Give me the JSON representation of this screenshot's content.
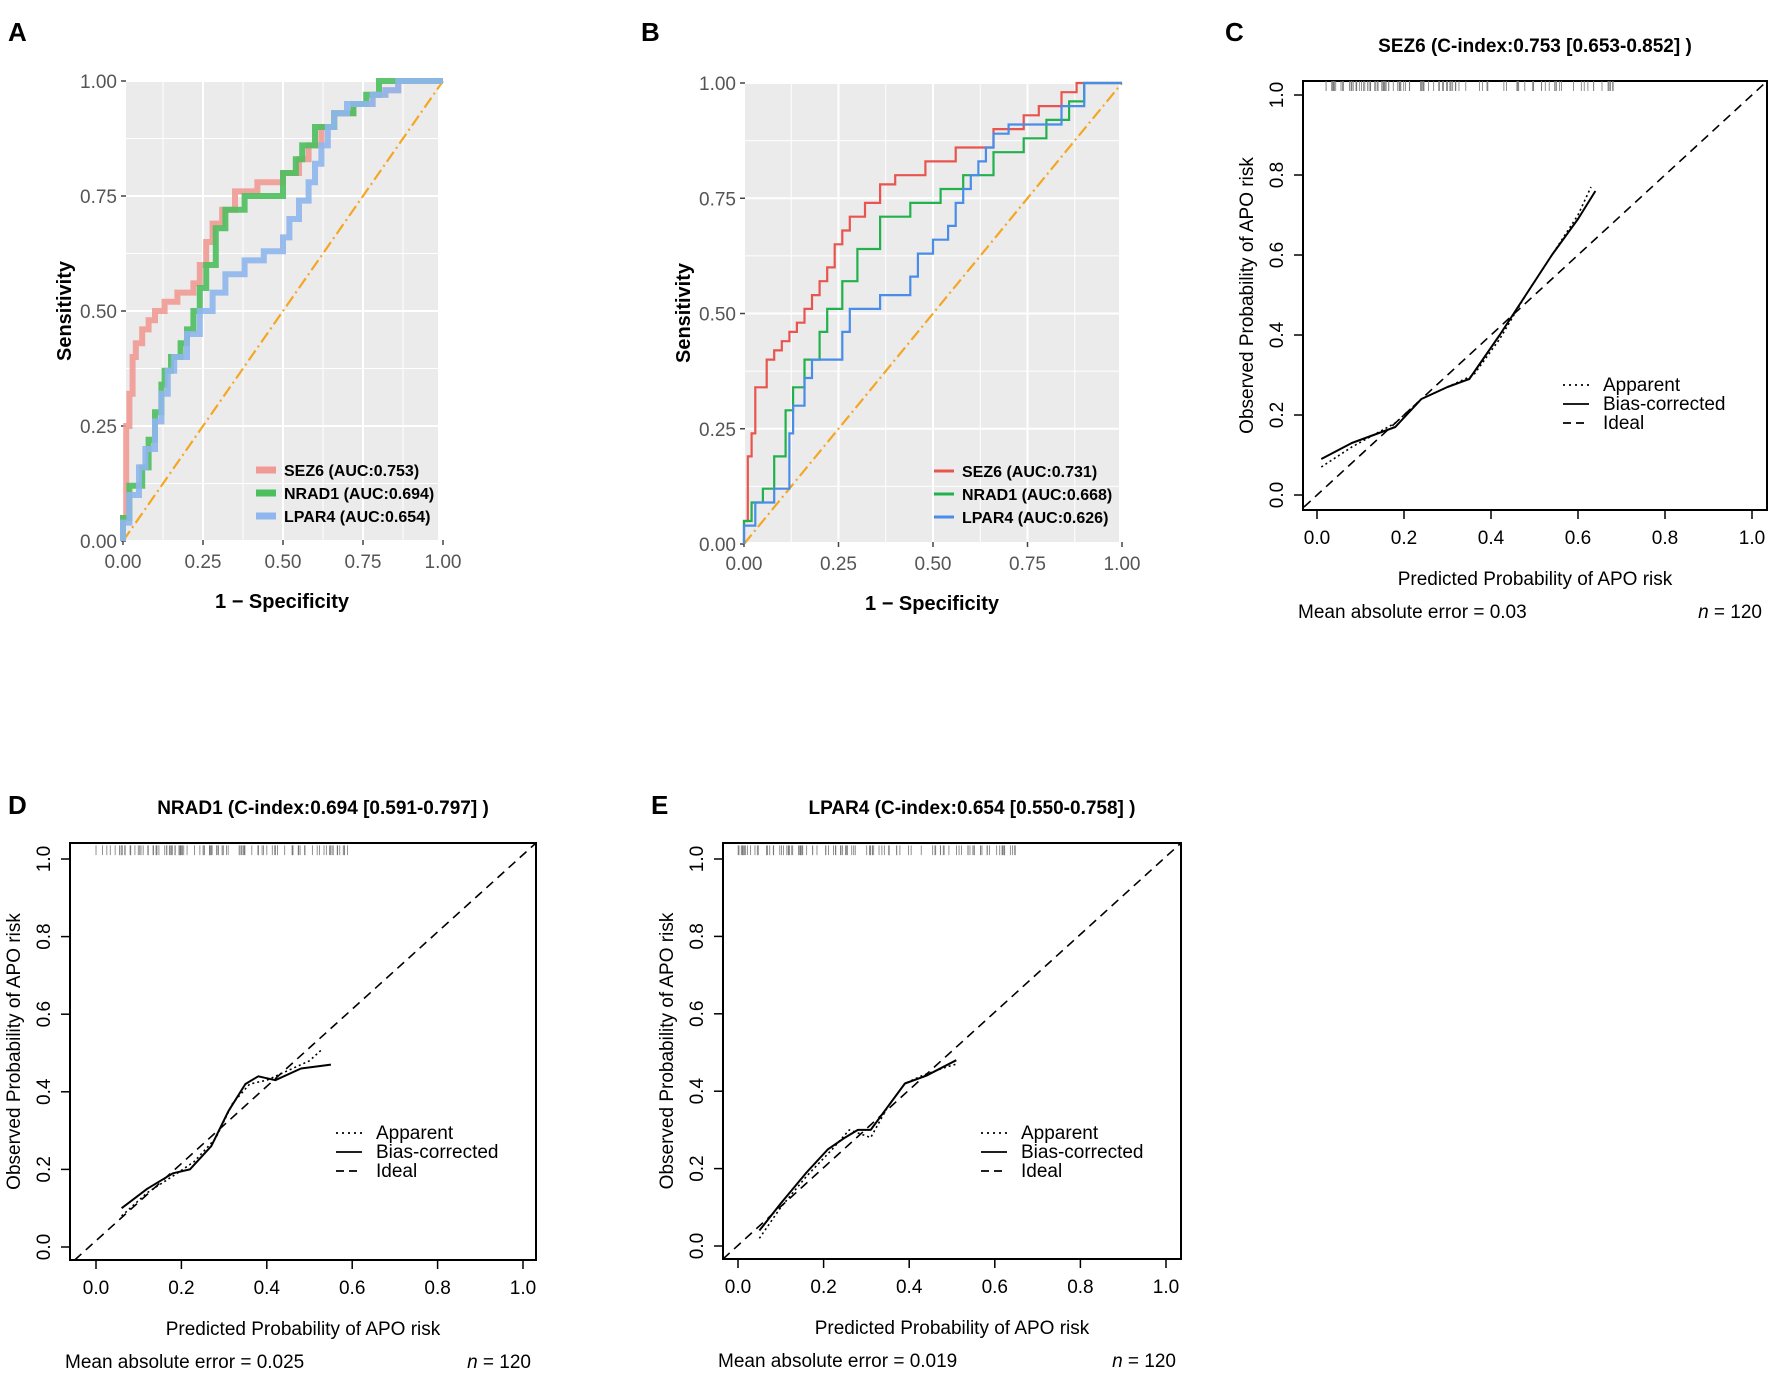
{
  "chart_data": [
    {
      "panel": "A",
      "type": "line",
      "subtype": "roc",
      "xlabel": "1 − Specificity",
      "ylabel": "Sensitivity",
      "xlim": [
        0,
        1
      ],
      "ylim": [
        0,
        1
      ],
      "x_ticks": [
        "0.00",
        "0.25",
        "0.50",
        "0.75",
        "1.00"
      ],
      "y_ticks": [
        "0.00",
        "0.25",
        "0.50",
        "0.75",
        "1.00"
      ],
      "grid": true,
      "legend_position": "bottom-right",
      "reference_line": {
        "color": "#f5a623",
        "style": "dashdot"
      },
      "series": [
        {
          "name": "SEZ6 (AUC:0.753)",
          "color": "#f19a94",
          "x": [
            0,
            0,
            0.01,
            0.01,
            0.02,
            0.02,
            0.03,
            0.03,
            0.04,
            0.04,
            0.06,
            0.06,
            0.08,
            0.08,
            0.1,
            0.1,
            0.13,
            0.13,
            0.17,
            0.17,
            0.22,
            0.22,
            0.24,
            0.24,
            0.26,
            0.26,
            0.28,
            0.28,
            0.31,
            0.31,
            0.35,
            0.35,
            0.42,
            0.42,
            0.5,
            0.5,
            0.55,
            0.55,
            0.58,
            0.58,
            0.62,
            0.62,
            0.66,
            0.66,
            0.72,
            0.72,
            0.78,
            0.78,
            0.82,
            0.82,
            0.86,
            0.86,
            0.9,
            0.9,
            1
          ],
          "y": [
            0,
            0.05,
            0.05,
            0.25,
            0.25,
            0.32,
            0.32,
            0.4,
            0.4,
            0.43,
            0.43,
            0.46,
            0.46,
            0.48,
            0.48,
            0.5,
            0.5,
            0.52,
            0.52,
            0.54,
            0.54,
            0.56,
            0.56,
            0.6,
            0.6,
            0.65,
            0.65,
            0.69,
            0.69,
            0.72,
            0.72,
            0.76,
            0.76,
            0.78,
            0.78,
            0.8,
            0.8,
            0.83,
            0.83,
            0.86,
            0.86,
            0.9,
            0.9,
            0.93,
            0.93,
            0.95,
            0.95,
            0.97,
            0.97,
            0.98,
            0.98,
            1,
            1,
            1,
            1
          ]
        },
        {
          "name": "NRAD1 (AUC:0.694)",
          "color": "#4dbf5e",
          "x": [
            0,
            0,
            0.02,
            0.02,
            0.06,
            0.06,
            0.08,
            0.08,
            0.1,
            0.1,
            0.12,
            0.12,
            0.13,
            0.13,
            0.15,
            0.15,
            0.18,
            0.18,
            0.2,
            0.2,
            0.22,
            0.22,
            0.24,
            0.24,
            0.26,
            0.26,
            0.29,
            0.29,
            0.32,
            0.32,
            0.38,
            0.38,
            0.5,
            0.5,
            0.54,
            0.54,
            0.56,
            0.56,
            0.6,
            0.6,
            0.66,
            0.66,
            0.72,
            0.72,
            0.76,
            0.76,
            0.8,
            0.8,
            0.84,
            0.84,
            1
          ],
          "y": [
            0,
            0.05,
            0.05,
            0.12,
            0.12,
            0.16,
            0.16,
            0.22,
            0.22,
            0.28,
            0.28,
            0.34,
            0.34,
            0.37,
            0.37,
            0.4,
            0.4,
            0.43,
            0.43,
            0.46,
            0.46,
            0.5,
            0.5,
            0.55,
            0.55,
            0.6,
            0.6,
            0.68,
            0.68,
            0.72,
            0.72,
            0.75,
            0.75,
            0.8,
            0.8,
            0.83,
            0.83,
            0.86,
            0.86,
            0.9,
            0.9,
            0.93,
            0.93,
            0.95,
            0.95,
            0.97,
            0.97,
            1,
            1,
            1,
            1
          ]
        },
        {
          "name": "LPAR4 (AUC:0.654)",
          "color": "#8fb6ee",
          "x": [
            0,
            0,
            0.02,
            0.02,
            0.05,
            0.05,
            0.07,
            0.07,
            0.1,
            0.1,
            0.12,
            0.12,
            0.14,
            0.14,
            0.16,
            0.16,
            0.2,
            0.2,
            0.24,
            0.24,
            0.28,
            0.28,
            0.32,
            0.32,
            0.38,
            0.38,
            0.44,
            0.44,
            0.5,
            0.5,
            0.52,
            0.52,
            0.55,
            0.55,
            0.58,
            0.58,
            0.6,
            0.6,
            0.62,
            0.62,
            0.64,
            0.64,
            0.66,
            0.66,
            0.7,
            0.7,
            0.78,
            0.78,
            0.82,
            0.82,
            0.86,
            0.86,
            1
          ],
          "y": [
            0,
            0.04,
            0.04,
            0.1,
            0.1,
            0.16,
            0.16,
            0.2,
            0.2,
            0.26,
            0.26,
            0.32,
            0.32,
            0.37,
            0.37,
            0.4,
            0.4,
            0.45,
            0.45,
            0.5,
            0.5,
            0.54,
            0.54,
            0.58,
            0.58,
            0.61,
            0.61,
            0.63,
            0.63,
            0.66,
            0.66,
            0.7,
            0.7,
            0.74,
            0.74,
            0.78,
            0.78,
            0.82,
            0.82,
            0.86,
            0.86,
            0.9,
            0.9,
            0.93,
            0.93,
            0.95,
            0.95,
            0.97,
            0.97,
            0.98,
            0.98,
            1,
            1
          ]
        }
      ]
    },
    {
      "panel": "B",
      "type": "line",
      "subtype": "roc",
      "xlabel": "1 − Specificity",
      "ylabel": "Sensitivity",
      "xlim": [
        0,
        1
      ],
      "ylim": [
        0,
        1
      ],
      "x_ticks": [
        "0.00",
        "0.25",
        "0.50",
        "0.75",
        "1.00"
      ],
      "y_ticks": [
        "0.00",
        "0.25",
        "0.50",
        "0.75",
        "1.00"
      ],
      "grid": true,
      "legend_position": "bottom-right",
      "reference_line": {
        "color": "#f5a623",
        "style": "dashdot"
      },
      "series": [
        {
          "name": "SEZ6 (AUC:0.731)",
          "color": "#e8554e",
          "x": [
            0,
            0,
            0.01,
            0.01,
            0.02,
            0.02,
            0.03,
            0.03,
            0.04,
            0.04,
            0.06,
            0.06,
            0.08,
            0.08,
            0.1,
            0.1,
            0.12,
            0.12,
            0.14,
            0.14,
            0.16,
            0.16,
            0.18,
            0.18,
            0.2,
            0.2,
            0.22,
            0.22,
            0.24,
            0.24,
            0.26,
            0.26,
            0.28,
            0.28,
            0.32,
            0.32,
            0.36,
            0.36,
            0.4,
            0.4,
            0.48,
            0.48,
            0.56,
            0.56,
            0.66,
            0.66,
            0.74,
            0.74,
            0.78,
            0.78,
            0.84,
            0.84,
            0.88,
            0.88,
            1
          ],
          "y": [
            0,
            0.05,
            0.05,
            0.19,
            0.19,
            0.24,
            0.24,
            0.34,
            0.34,
            0.34,
            0.34,
            0.4,
            0.4,
            0.42,
            0.42,
            0.44,
            0.44,
            0.46,
            0.46,
            0.48,
            0.48,
            0.51,
            0.51,
            0.54,
            0.54,
            0.57,
            0.57,
            0.6,
            0.6,
            0.65,
            0.65,
            0.68,
            0.68,
            0.71,
            0.71,
            0.74,
            0.74,
            0.78,
            0.78,
            0.8,
            0.8,
            0.83,
            0.83,
            0.86,
            0.86,
            0.9,
            0.9,
            0.93,
            0.93,
            0.95,
            0.95,
            0.98,
            0.98,
            1,
            1
          ]
        },
        {
          "name": "NRAD1 (AUC:0.668)",
          "color": "#22b14c",
          "x": [
            0,
            0,
            0.02,
            0.02,
            0.05,
            0.05,
            0.08,
            0.08,
            0.11,
            0.11,
            0.13,
            0.13,
            0.16,
            0.16,
            0.2,
            0.2,
            0.22,
            0.22,
            0.26,
            0.26,
            0.3,
            0.3,
            0.36,
            0.36,
            0.44,
            0.44,
            0.52,
            0.52,
            0.58,
            0.58,
            0.66,
            0.66,
            0.74,
            0.74,
            0.8,
            0.8,
            0.86,
            0.86,
            0.9,
            0.9,
            1
          ],
          "y": [
            0,
            0.05,
            0.05,
            0.09,
            0.09,
            0.12,
            0.12,
            0.19,
            0.19,
            0.29,
            0.29,
            0.34,
            0.34,
            0.4,
            0.4,
            0.46,
            0.46,
            0.51,
            0.51,
            0.57,
            0.57,
            0.64,
            0.64,
            0.71,
            0.71,
            0.74,
            0.74,
            0.77,
            0.77,
            0.8,
            0.8,
            0.85,
            0.85,
            0.88,
            0.88,
            0.92,
            0.92,
            0.96,
            0.96,
            1,
            1
          ]
        },
        {
          "name": "LPAR4 (AUC:0.626)",
          "color": "#4a8de8",
          "x": [
            0,
            0,
            0.03,
            0.03,
            0.08,
            0.08,
            0.12,
            0.12,
            0.13,
            0.13,
            0.16,
            0.16,
            0.18,
            0.18,
            0.26,
            0.26,
            0.28,
            0.28,
            0.3,
            0.3,
            0.36,
            0.36,
            0.44,
            0.44,
            0.46,
            0.46,
            0.5,
            0.5,
            0.54,
            0.54,
            0.56,
            0.56,
            0.58,
            0.58,
            0.6,
            0.6,
            0.62,
            0.62,
            0.64,
            0.64,
            0.66,
            0.66,
            0.7,
            0.7,
            0.84,
            0.84,
            0.9,
            0.9,
            1
          ],
          "y": [
            0,
            0.04,
            0.04,
            0.09,
            0.09,
            0.12,
            0.12,
            0.24,
            0.24,
            0.3,
            0.3,
            0.36,
            0.36,
            0.4,
            0.4,
            0.46,
            0.46,
            0.51,
            0.51,
            0.51,
            0.51,
            0.54,
            0.54,
            0.58,
            0.58,
            0.63,
            0.63,
            0.66,
            0.66,
            0.69,
            0.69,
            0.74,
            0.74,
            0.77,
            0.77,
            0.8,
            0.8,
            0.83,
            0.83,
            0.86,
            0.86,
            0.89,
            0.89,
            0.91,
            0.91,
            0.95,
            0.95,
            1,
            1
          ]
        }
      ]
    },
    {
      "panel": "C",
      "type": "line",
      "subtype": "calibration",
      "title": "SEZ6 (C-index:0.753 [0.653-0.852] )",
      "xlabel": "Predicted Probability of APO risk",
      "ylabel": "Observed Probability of APO risk",
      "xlim": [
        0,
        1
      ],
      "ylim": [
        0,
        1
      ],
      "x_ticks": [
        "0.0",
        "0.2",
        "0.4",
        "0.6",
        "0.8",
        "1.0"
      ],
      "y_ticks": [
        "0.0",
        "0.2",
        "0.4",
        "0.6",
        "0.8",
        "1.0"
      ],
      "legend_position": "right",
      "footer_left": "Mean absolute error = 0.03",
      "footer_n_label": "n",
      "footer_n_value": " = 120",
      "series": [
        {
          "name": "Apparent",
          "style": "dotted",
          "x": [
            0.01,
            0.08,
            0.18,
            0.24,
            0.3,
            0.36,
            0.42,
            0.48,
            0.54,
            0.6,
            0.63
          ],
          "y": [
            0.07,
            0.12,
            0.18,
            0.24,
            0.27,
            0.3,
            0.39,
            0.5,
            0.6,
            0.7,
            0.77
          ]
        },
        {
          "name": "Bias-corrected",
          "style": "solid",
          "x": [
            0.01,
            0.08,
            0.18,
            0.24,
            0.3,
            0.35,
            0.42,
            0.48,
            0.54,
            0.6,
            0.64
          ],
          "y": [
            0.09,
            0.13,
            0.17,
            0.24,
            0.27,
            0.29,
            0.4,
            0.5,
            0.6,
            0.69,
            0.76
          ]
        },
        {
          "name": "Ideal",
          "style": "dashed",
          "x": [
            -0.03,
            1.03
          ],
          "y": [
            -0.03,
            1.03
          ]
        }
      ],
      "rug_range": [
        0.02,
        0.69
      ]
    },
    {
      "panel": "D",
      "type": "line",
      "subtype": "calibration",
      "title": "NRAD1 (C-index:0.694 [0.591-0.797] )",
      "xlabel": "Predicted Probability of APO risk",
      "ylabel": "Observed Probability of APO risk",
      "xlim": [
        0,
        1
      ],
      "ylim": [
        0,
        1
      ],
      "x_ticks": [
        "0.0",
        "0.2",
        "0.4",
        "0.6",
        "0.8",
        "1.0"
      ],
      "y_ticks": [
        "0.0",
        "0.2",
        "0.4",
        "0.6",
        "0.8",
        "1.0"
      ],
      "legend_position": "right",
      "footer_left": "Mean absolute error = 0.025",
      "footer_n_label": "n",
      "footer_n_value": " = 120",
      "series": [
        {
          "name": "Apparent",
          "style": "dotted",
          "x": [
            0.06,
            0.12,
            0.19,
            0.23,
            0.28,
            0.32,
            0.36,
            0.4,
            0.44,
            0.5,
            0.53
          ],
          "y": [
            0.08,
            0.14,
            0.19,
            0.22,
            0.28,
            0.37,
            0.42,
            0.43,
            0.45,
            0.48,
            0.51
          ]
        },
        {
          "name": "Bias-corrected",
          "style": "solid",
          "x": [
            0.06,
            0.12,
            0.18,
            0.22,
            0.27,
            0.31,
            0.35,
            0.38,
            0.42,
            0.48,
            0.55
          ],
          "y": [
            0.1,
            0.15,
            0.19,
            0.2,
            0.26,
            0.35,
            0.42,
            0.44,
            0.43,
            0.46,
            0.47
          ]
        },
        {
          "name": "Ideal",
          "style": "dashed",
          "x": [
            -0.05,
            1.05
          ],
          "y": [
            -0.05,
            1.05
          ]
        }
      ],
      "rug_range": [
        0.0,
        0.59
      ]
    },
    {
      "panel": "E",
      "type": "line",
      "subtype": "calibration",
      "title": "LPAR4 (C-index:0.654 [0.550-0.758] )",
      "xlabel": "Predicted Probability of APO risk",
      "ylabel": "Observed Probability of APO risk",
      "xlim": [
        0,
        1
      ],
      "ylim": [
        0,
        1
      ],
      "x_ticks": [
        "0.0",
        "0.2",
        "0.4",
        "0.6",
        "0.8",
        "1.0"
      ],
      "y_ticks": [
        "0.0",
        "0.2",
        "0.4",
        "0.6",
        "0.8",
        "1.0"
      ],
      "legend_position": "right",
      "footer_left": "Mean absolute error = 0.019",
      "footer_n_label": "n",
      "footer_n_value": " = 120",
      "series": [
        {
          "name": "Apparent",
          "style": "dotted",
          "x": [
            0.05,
            0.1,
            0.16,
            0.22,
            0.26,
            0.31,
            0.35,
            0.39,
            0.43,
            0.48,
            0.51
          ],
          "y": [
            0.02,
            0.1,
            0.18,
            0.25,
            0.3,
            0.28,
            0.36,
            0.42,
            0.44,
            0.46,
            0.47
          ]
        },
        {
          "name": "Bias-corrected",
          "style": "solid",
          "x": [
            0.05,
            0.1,
            0.16,
            0.21,
            0.25,
            0.28,
            0.31,
            0.35,
            0.39,
            0.44,
            0.51
          ],
          "y": [
            0.04,
            0.11,
            0.19,
            0.25,
            0.28,
            0.3,
            0.3,
            0.36,
            0.42,
            0.44,
            0.48
          ]
        },
        {
          "name": "Ideal",
          "style": "dashed",
          "x": [
            -0.05,
            1.05
          ],
          "y": [
            -0.05,
            1.05
          ]
        }
      ],
      "rug_range": [
        0.0,
        0.65
      ]
    }
  ]
}
